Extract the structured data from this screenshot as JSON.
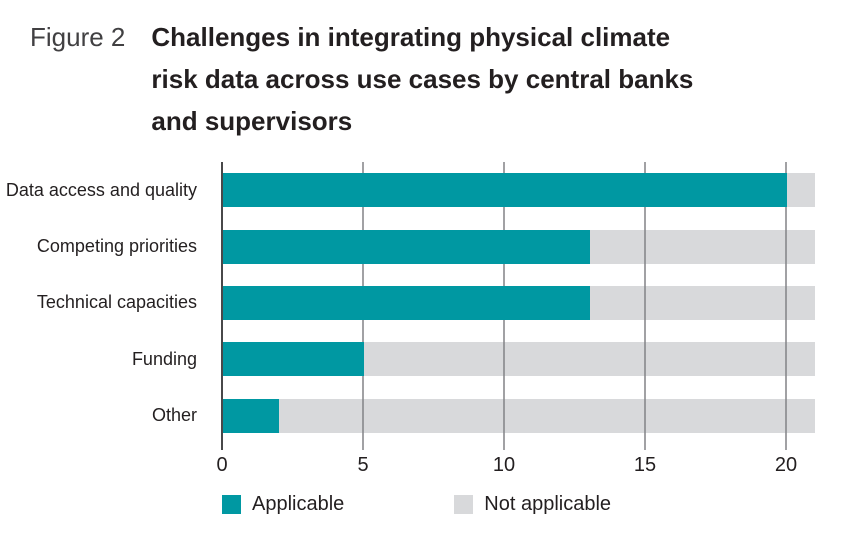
{
  "figure": {
    "label": "Figure 2",
    "title_lines": [
      "Challenges in integrating physical climate",
      "risk data across use cases by central banks",
      "and supervisors"
    ]
  },
  "chart_data": {
    "type": "bar",
    "orientation": "horizontal",
    "stacked": true,
    "title": "Challenges in integrating physical climate risk data across use cases by central banks and supervisors",
    "categories": [
      "Data access and quality",
      "Competing priorities",
      "Technical capacities",
      "Funding",
      "Other"
    ],
    "series": [
      {
        "name": "Applicable",
        "color": "#0098A2",
        "values": [
          20,
          13,
          13,
          5,
          2
        ]
      },
      {
        "name": "Not applicable",
        "color": "#D8D9DB",
        "values": [
          1,
          8,
          8,
          16,
          19
        ]
      }
    ],
    "total_responses": 21,
    "xlabel": "",
    "ylabel": "",
    "xlim": [
      0,
      21
    ],
    "xticks": [
      0,
      5,
      10,
      15,
      20
    ],
    "grid": "vertical",
    "legend_position": "bottom"
  },
  "legend": {
    "items": [
      {
        "label": "Applicable",
        "color": "#0098A2"
      },
      {
        "label": "Not applicable",
        "color": "#D8D9DB"
      }
    ]
  }
}
